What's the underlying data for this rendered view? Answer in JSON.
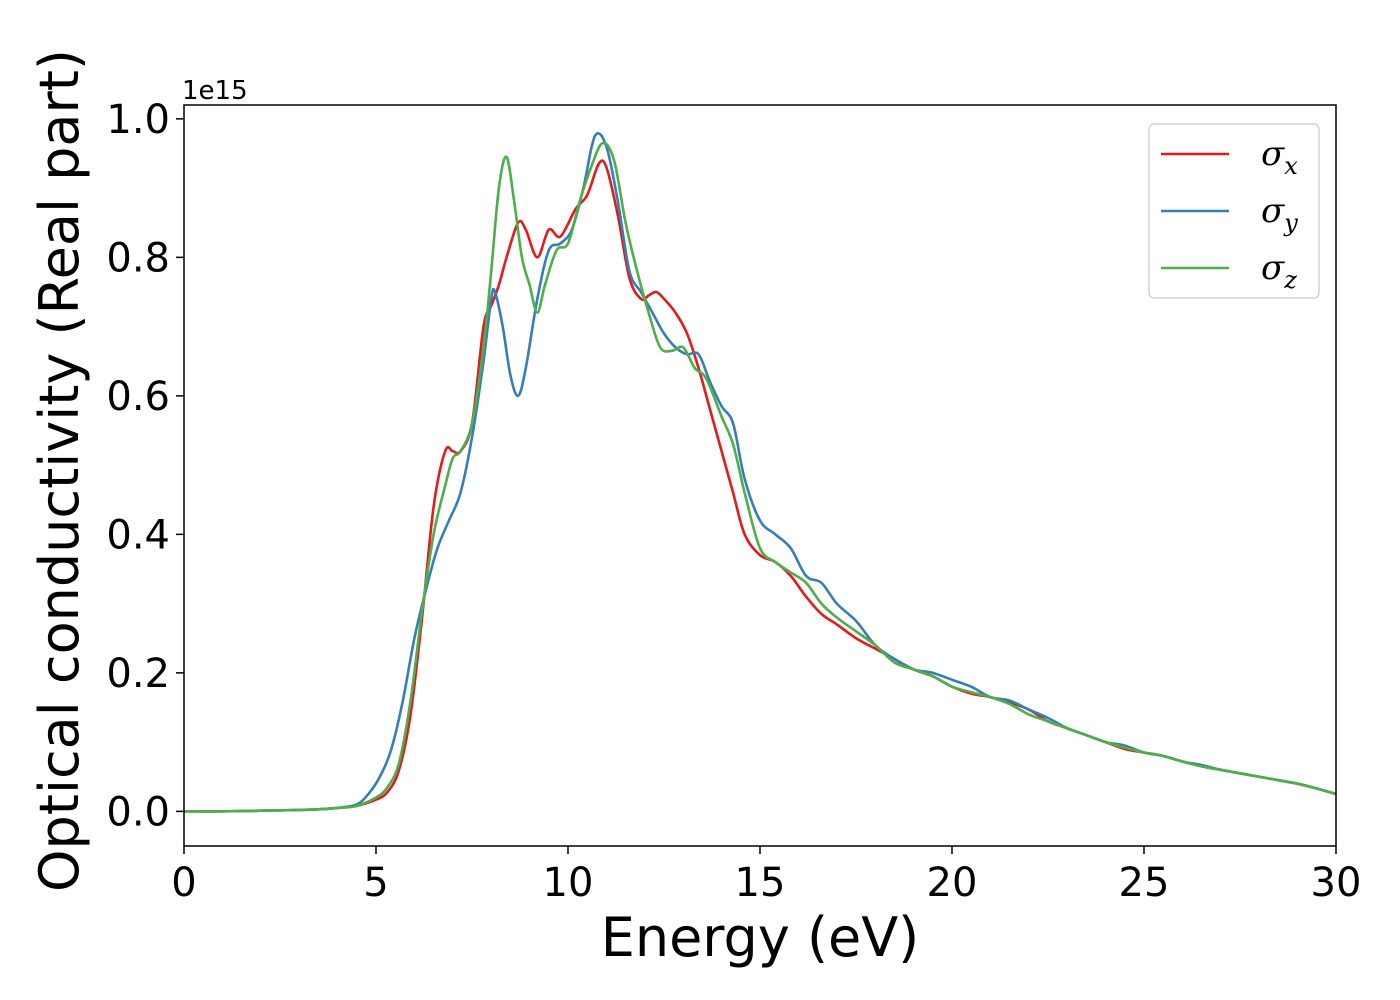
{
  "chart_data": {
    "type": "line",
    "xlabel": "Energy (eV)",
    "ylabel": "Optical conductivity (Real part)",
    "y_offset_label": "1e15",
    "xlim": [
      0,
      30
    ],
    "ylim": [
      -0.05,
      1.02
    ],
    "x_ticks": [
      0,
      5,
      10,
      15,
      20,
      25,
      30
    ],
    "y_ticks": [
      0.0,
      0.2,
      0.4,
      0.6,
      0.8,
      1.0
    ],
    "x_tick_labels": [
      "0",
      "5",
      "10",
      "15",
      "20",
      "25",
      "30"
    ],
    "y_tick_labels": [
      "0.0",
      "0.2",
      "0.4",
      "0.6",
      "0.8",
      "1.0"
    ],
    "grid": false,
    "legend_position": "top-right",
    "series": [
      {
        "name": "σ_x",
        "symbol": "σ",
        "subscript": "x",
        "color": "#e41a1c",
        "x": [
          0,
          1,
          2,
          3,
          3.5,
          4,
          4.5,
          5,
          5.3,
          5.6,
          5.9,
          6.2,
          6.5,
          6.8,
          7.0,
          7.2,
          7.5,
          7.8,
          8.0,
          8.2,
          8.4,
          8.7,
          8.9,
          9.2,
          9.5,
          9.8,
          10.2,
          10.5,
          10.8,
          11.0,
          11.3,
          11.6,
          11.9,
          12.1,
          12.3,
          12.5,
          12.8,
          13.1,
          13.4,
          13.7,
          14.0,
          14.3,
          14.6,
          15.0,
          15.4,
          15.8,
          16.2,
          16.6,
          17.0,
          17.5,
          18.0,
          18.5,
          19.0,
          19.5,
          20.0,
          20.5,
          21.0,
          21.5,
          22.0,
          22.5,
          23.0,
          23.5,
          24.0,
          24.5,
          25.0,
          25.5,
          26.0,
          26.5,
          27.0,
          27.5,
          28.0,
          28.5,
          29.0,
          29.5,
          30.0
        ],
        "y": [
          0,
          0,
          0.001,
          0.002,
          0.003,
          0.005,
          0.008,
          0.017,
          0.028,
          0.06,
          0.14,
          0.28,
          0.44,
          0.52,
          0.52,
          0.52,
          0.56,
          0.7,
          0.73,
          0.76,
          0.8,
          0.85,
          0.84,
          0.8,
          0.84,
          0.83,
          0.87,
          0.89,
          0.935,
          0.93,
          0.86,
          0.77,
          0.74,
          0.745,
          0.75,
          0.74,
          0.72,
          0.69,
          0.64,
          0.58,
          0.52,
          0.46,
          0.4,
          0.37,
          0.36,
          0.34,
          0.31,
          0.285,
          0.27,
          0.25,
          0.235,
          0.22,
          0.205,
          0.195,
          0.18,
          0.17,
          0.165,
          0.157,
          0.147,
          0.13,
          0.12,
          0.11,
          0.1,
          0.09,
          0.085,
          0.08,
          0.072,
          0.065,
          0.06,
          0.055,
          0.05,
          0.045,
          0.04,
          0.033,
          0.025
        ]
      },
      {
        "name": "σ_y",
        "symbol": "σ",
        "subscript": "y",
        "color": "#377eb8",
        "x": [
          0,
          1,
          2,
          3,
          3.5,
          4,
          4.5,
          4.8,
          5.1,
          5.4,
          5.7,
          6.0,
          6.3,
          6.6,
          6.9,
          7.2,
          7.5,
          7.8,
          8.0,
          8.1,
          8.3,
          8.5,
          8.7,
          8.9,
          9.2,
          9.5,
          9.8,
          10.1,
          10.4,
          10.7,
          11.0,
          11.3,
          11.6,
          11.9,
          12.2,
          12.5,
          12.8,
          13.1,
          13.4,
          13.7,
          14.0,
          14.3,
          14.6,
          15.0,
          15.4,
          15.8,
          16.2,
          16.6,
          17.0,
          17.5,
          18.0,
          18.5,
          19.0,
          19.5,
          20.0,
          20.5,
          21.0,
          21.5,
          22.0,
          22.5,
          23.0,
          23.5,
          24.0,
          24.5,
          25.0,
          25.5,
          26.0,
          26.5,
          27.0,
          27.5,
          28.0,
          28.5,
          29.0,
          29.5,
          30.0
        ],
        "y": [
          0,
          0,
          0.001,
          0.002,
          0.003,
          0.005,
          0.01,
          0.025,
          0.05,
          0.09,
          0.16,
          0.25,
          0.32,
          0.38,
          0.42,
          0.46,
          0.54,
          0.65,
          0.74,
          0.75,
          0.7,
          0.63,
          0.6,
          0.64,
          0.74,
          0.81,
          0.82,
          0.84,
          0.9,
          0.975,
          0.96,
          0.88,
          0.78,
          0.75,
          0.72,
          0.69,
          0.67,
          0.66,
          0.66,
          0.62,
          0.585,
          0.56,
          0.48,
          0.42,
          0.4,
          0.38,
          0.34,
          0.33,
          0.3,
          0.275,
          0.24,
          0.22,
          0.205,
          0.2,
          0.19,
          0.18,
          0.165,
          0.16,
          0.147,
          0.135,
          0.12,
          0.11,
          0.1,
          0.095,
          0.085,
          0.08,
          0.072,
          0.067,
          0.06,
          0.055,
          0.05,
          0.045,
          0.04,
          0.033,
          0.025
        ]
      },
      {
        "name": "σ_z",
        "symbol": "σ",
        "subscript": "z",
        "color": "#4daf4a",
        "x": [
          0,
          1,
          2,
          3,
          3.5,
          4,
          4.5,
          5,
          5.3,
          5.6,
          5.9,
          6.2,
          6.5,
          6.8,
          7.0,
          7.2,
          7.5,
          7.8,
          8.0,
          8.2,
          8.4,
          8.6,
          8.8,
          9.0,
          9.2,
          9.4,
          9.7,
          10.0,
          10.3,
          10.6,
          10.9,
          11.2,
          11.5,
          11.8,
          12.1,
          12.4,
          12.7,
          13.0,
          13.3,
          13.6,
          14.0,
          14.3,
          14.6,
          15.0,
          15.4,
          15.8,
          16.2,
          16.6,
          17.0,
          17.5,
          18.0,
          18.5,
          19.0,
          19.5,
          20.0,
          20.5,
          21.0,
          21.5,
          22.0,
          22.5,
          23.0,
          23.5,
          24.0,
          24.5,
          25.0,
          25.5,
          26.0,
          26.5,
          27.0,
          27.5,
          28.0,
          28.5,
          29.0,
          29.5,
          30.0
        ],
        "y": [
          0,
          0,
          0.001,
          0.002,
          0.003,
          0.005,
          0.008,
          0.02,
          0.035,
          0.07,
          0.16,
          0.29,
          0.4,
          0.47,
          0.51,
          0.52,
          0.56,
          0.67,
          0.78,
          0.9,
          0.945,
          0.88,
          0.8,
          0.76,
          0.72,
          0.76,
          0.81,
          0.82,
          0.88,
          0.93,
          0.965,
          0.94,
          0.85,
          0.78,
          0.72,
          0.67,
          0.665,
          0.67,
          0.64,
          0.625,
          0.57,
          0.53,
          0.46,
          0.38,
          0.36,
          0.345,
          0.33,
          0.3,
          0.28,
          0.26,
          0.24,
          0.215,
          0.205,
          0.195,
          0.18,
          0.172,
          0.165,
          0.155,
          0.14,
          0.13,
          0.12,
          0.11,
          0.1,
          0.092,
          0.085,
          0.08,
          0.072,
          0.065,
          0.06,
          0.055,
          0.05,
          0.045,
          0.04,
          0.033,
          0.025
        ]
      }
    ]
  }
}
